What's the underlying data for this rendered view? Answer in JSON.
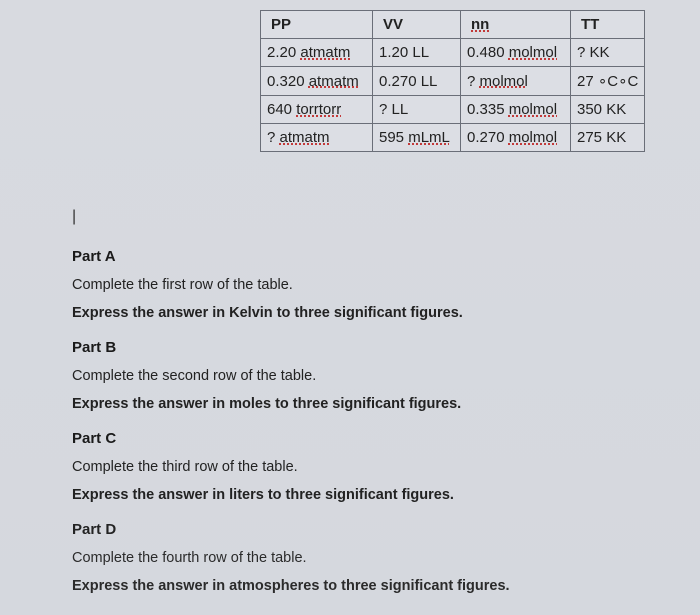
{
  "table": {
    "headers": [
      "PP",
      "VV",
      "nn",
      "TT"
    ],
    "rows": [
      {
        "p_val": "2.20 ",
        "p_unit": "atmatm",
        "v_val": "1.20 LL",
        "n_val": "0.480 ",
        "n_unit": "molmol",
        "t_val": "? KK"
      },
      {
        "p_val": "0.320 ",
        "p_unit": "atmatm",
        "v_val": "0.270 LL",
        "n_val": "? ",
        "n_unit": "molmol",
        "t_val": "27 ∘C∘C"
      },
      {
        "p_val": "640 ",
        "p_unit": "torrtorr",
        "v_val": "? LL",
        "n_val": "0.335 ",
        "n_unit": "molmol",
        "t_val": "350 KK"
      },
      {
        "p_val": "? ",
        "p_unit": "atmatm",
        "v_val": "595 ",
        "v_unit": "mLmL",
        "n_val": "0.270 ",
        "n_unit": "molmol",
        "t_val": "275 KK"
      }
    ]
  },
  "parts": {
    "a": {
      "label": "Part A",
      "line1": "Complete the first row of the table.",
      "line2": "Express the answer in Kelvin to three significant figures."
    },
    "b": {
      "label": "Part B",
      "line1": "Complete the second row of the table.",
      "line2": "Express the answer in moles to three significant figures."
    },
    "c": {
      "label": "Part C",
      "line1": "Complete the third row of the table.",
      "line2": "Express the answer in liters to three significant figures."
    },
    "d": {
      "label": "Part D",
      "line1": "Complete the fourth row of the table.",
      "line2": "Express the answer in atmospheres to three significant figures."
    }
  }
}
